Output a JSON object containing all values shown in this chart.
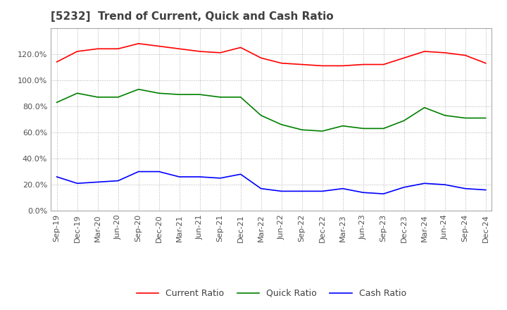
{
  "title": "[5232]  Trend of Current, Quick and Cash Ratio",
  "x_labels": [
    "Sep-19",
    "Dec-19",
    "Mar-20",
    "Jun-20",
    "Sep-20",
    "Dec-20",
    "Mar-21",
    "Jun-21",
    "Sep-21",
    "Dec-21",
    "Mar-22",
    "Jun-22",
    "Sep-22",
    "Dec-22",
    "Mar-23",
    "Jun-23",
    "Sep-23",
    "Dec-23",
    "Mar-24",
    "Jun-24",
    "Sep-24",
    "Dec-24"
  ],
  "current_ratio": [
    114.0,
    122.0,
    124.0,
    124.0,
    128.0,
    126.0,
    124.0,
    122.0,
    121.0,
    125.0,
    117.0,
    113.0,
    112.0,
    111.0,
    111.0,
    112.0,
    112.0,
    117.0,
    122.0,
    121.0,
    119.0,
    113.0
  ],
  "quick_ratio": [
    83.0,
    90.0,
    87.0,
    87.0,
    93.0,
    90.0,
    89.0,
    89.0,
    87.0,
    87.0,
    73.0,
    66.0,
    62.0,
    61.0,
    65.0,
    63.0,
    63.0,
    69.0,
    79.0,
    73.0,
    71.0,
    71.0
  ],
  "cash_ratio": [
    26.0,
    21.0,
    22.0,
    23.0,
    30.0,
    30.0,
    26.0,
    26.0,
    25.0,
    28.0,
    17.0,
    15.0,
    15.0,
    15.0,
    17.0,
    14.0,
    13.0,
    18.0,
    21.0,
    20.0,
    17.0,
    16.0
  ],
  "current_color": "#ff0000",
  "quick_color": "#008000",
  "cash_color": "#0000ff",
  "ylim": [
    0.0,
    140.0
  ],
  "yticks": [
    0.0,
    20.0,
    40.0,
    60.0,
    80.0,
    100.0,
    120.0
  ],
  "background_color": "#ffffff",
  "grid_color": "#b0b0b0",
  "title_fontsize": 11,
  "tick_fontsize": 8,
  "legend_fontsize": 9
}
